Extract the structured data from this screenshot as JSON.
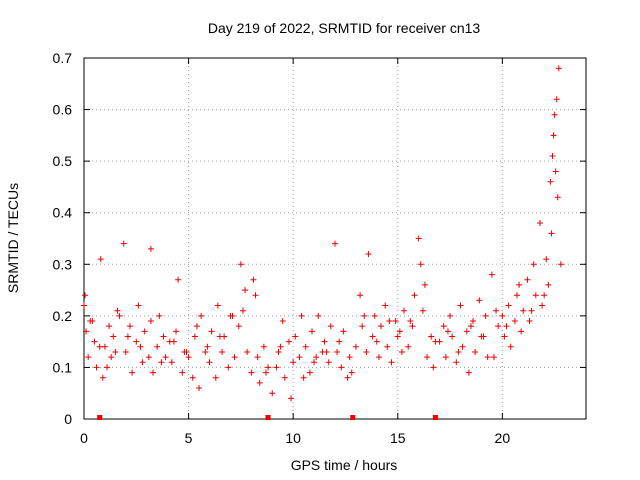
{
  "chart_data": {
    "type": "scatter",
    "title": "Day 219 of 2022, SRMTID for receiver cn13",
    "xlabel": "GPS time / hours",
    "ylabel": "SRMTID / TECUs",
    "xlim": [
      0,
      24
    ],
    "ylim": [
      0,
      0.7
    ],
    "xticks": [
      0,
      5,
      10,
      15,
      20
    ],
    "xtick_labels": [
      "0",
      "5",
      "10",
      "15",
      "20"
    ],
    "yticks": [
      0,
      0.1,
      0.2,
      0.3,
      0.4,
      0.5,
      0.6,
      0.7
    ],
    "ytick_labels": [
      "0",
      "0.1",
      "0.2",
      "0.3",
      "0.4",
      "0.5",
      "0.6",
      "0.7"
    ],
    "grid": true,
    "marker": "+",
    "color": "#ee0000",
    "series": [
      {
        "name": "SRMTID",
        "x": [
          0.0,
          0.1,
          0.2,
          0.3,
          0.5,
          0.6,
          0.8,
          0.9,
          1.0,
          1.2,
          1.3,
          1.4,
          1.6,
          1.7,
          1.9,
          2.0,
          2.2,
          2.3,
          2.5,
          2.6,
          2.8,
          2.9,
          3.1,
          3.2,
          3.3,
          3.5,
          3.6,
          3.8,
          3.9,
          4.1,
          4.2,
          4.4,
          4.5,
          4.7,
          4.8,
          5.0,
          5.2,
          5.3,
          5.5,
          5.6,
          5.8,
          6.0,
          6.1,
          6.3,
          6.4,
          6.6,
          6.7,
          6.9,
          7.1,
          7.2,
          7.4,
          7.5,
          7.7,
          7.8,
          8.0,
          8.1,
          8.3,
          8.4,
          8.6,
          8.7,
          9.0,
          9.2,
          9.3,
          9.5,
          9.6,
          9.8,
          10.0,
          10.1,
          10.3,
          10.4,
          10.6,
          10.8,
          10.9,
          11.1,
          11.2,
          11.4,
          11.5,
          11.7,
          11.8,
          12.0,
          12.1,
          12.3,
          12.4,
          12.6,
          12.7,
          13.0,
          13.2,
          13.3,
          13.5,
          13.6,
          13.8,
          13.9,
          14.1,
          14.2,
          14.4,
          14.5,
          14.7,
          14.9,
          15.0,
          15.2,
          15.3,
          15.5,
          15.6,
          15.8,
          16.0,
          16.1,
          16.3,
          16.4,
          16.6,
          16.7,
          17.0,
          17.2,
          17.3,
          17.5,
          17.6,
          17.8,
          18.0,
          18.1,
          18.3,
          18.4,
          18.6,
          18.7,
          18.9,
          19.0,
          19.2,
          19.3,
          19.5,
          19.7,
          19.8,
          20.0,
          20.1,
          20.3,
          20.4,
          20.6,
          20.7,
          20.9,
          21.0,
          21.2,
          21.3,
          21.5,
          21.6,
          21.8,
          21.9,
          22.1,
          22.2,
          22.3,
          22.4,
          22.5,
          22.6,
          22.7,
          22.8,
          0.05,
          0.4,
          0.75,
          1.1,
          1.5,
          2.1,
          2.7,
          3.2,
          3.7,
          4.3,
          4.9,
          5.4,
          5.9,
          6.5,
          7.0,
          7.6,
          8.2,
          8.8,
          9.4,
          9.9,
          10.5,
          11.0,
          11.6,
          12.2,
          12.8,
          13.4,
          14.0,
          14.6,
          15.1,
          15.7,
          16.2,
          16.8,
          17.4,
          17.9,
          18.5,
          19.1,
          19.6,
          20.2,
          20.8,
          21.4,
          22.0,
          22.35,
          22.45,
          22.55,
          22.65
        ],
        "y": [
          0.22,
          0.17,
          0.12,
          0.19,
          0.15,
          0.1,
          0.31,
          0.08,
          0.14,
          0.18,
          0.12,
          0.16,
          0.21,
          0.2,
          0.34,
          0.13,
          0.18,
          0.09,
          0.15,
          0.22,
          0.11,
          0.17,
          0.12,
          0.33,
          0.09,
          0.14,
          0.2,
          0.16,
          0.12,
          0.15,
          0.11,
          0.17,
          0.27,
          0.09,
          0.13,
          0.12,
          0.08,
          0.16,
          0.06,
          0.2,
          0.13,
          0.11,
          0.17,
          0.08,
          0.22,
          0.13,
          0.16,
          0.1,
          0.2,
          0.12,
          0.18,
          0.3,
          0.25,
          0.13,
          0.09,
          0.27,
          0.12,
          0.07,
          0.14,
          0.09,
          0.05,
          0.1,
          0.13,
          0.19,
          0.08,
          0.15,
          0.11,
          0.16,
          0.12,
          0.2,
          0.14,
          0.09,
          0.17,
          0.12,
          0.2,
          0.13,
          0.15,
          0.11,
          0.18,
          0.34,
          0.13,
          0.1,
          0.17,
          0.08,
          0.12,
          0.14,
          0.24,
          0.18,
          0.13,
          0.32,
          0.16,
          0.2,
          0.12,
          0.18,
          0.22,
          0.14,
          0.11,
          0.19,
          0.16,
          0.13,
          0.21,
          0.14,
          0.19,
          0.24,
          0.35,
          0.3,
          0.26,
          0.12,
          0.16,
          0.1,
          0.15,
          0.18,
          0.12,
          0.2,
          0.16,
          0.11,
          0.22,
          0.14,
          0.17,
          0.09,
          0.19,
          0.13,
          0.23,
          0.16,
          0.2,
          0.12,
          0.28,
          0.21,
          0.18,
          0.2,
          0.16,
          0.22,
          0.14,
          0.19,
          0.24,
          0.17,
          0.21,
          0.27,
          0.19,
          0.3,
          0.24,
          0.38,
          0.22,
          0.31,
          0.26,
          0.46,
          0.51,
          0.59,
          0.62,
          0.68,
          0.3,
          0.24,
          0.19,
          0.14,
          0.1,
          0.13,
          0.16,
          0.14,
          0.19,
          0.11,
          0.15,
          0.13,
          0.18,
          0.14,
          0.16,
          0.2,
          0.21,
          0.24,
          0.1,
          0.14,
          0.04,
          0.08,
          0.11,
          0.13,
          0.15,
          0.09,
          0.2,
          0.15,
          0.19,
          0.17,
          0.18,
          0.21,
          0.15,
          0.17,
          0.13,
          0.18,
          0.16,
          0.12,
          0.18,
          0.26,
          0.21,
          0.24,
          0.36,
          0.55,
          0.48,
          0.43
        ]
      }
    ],
    "gap_markers_x": [
      0.75,
      8.8,
      12.85,
      16.8
    ]
  }
}
